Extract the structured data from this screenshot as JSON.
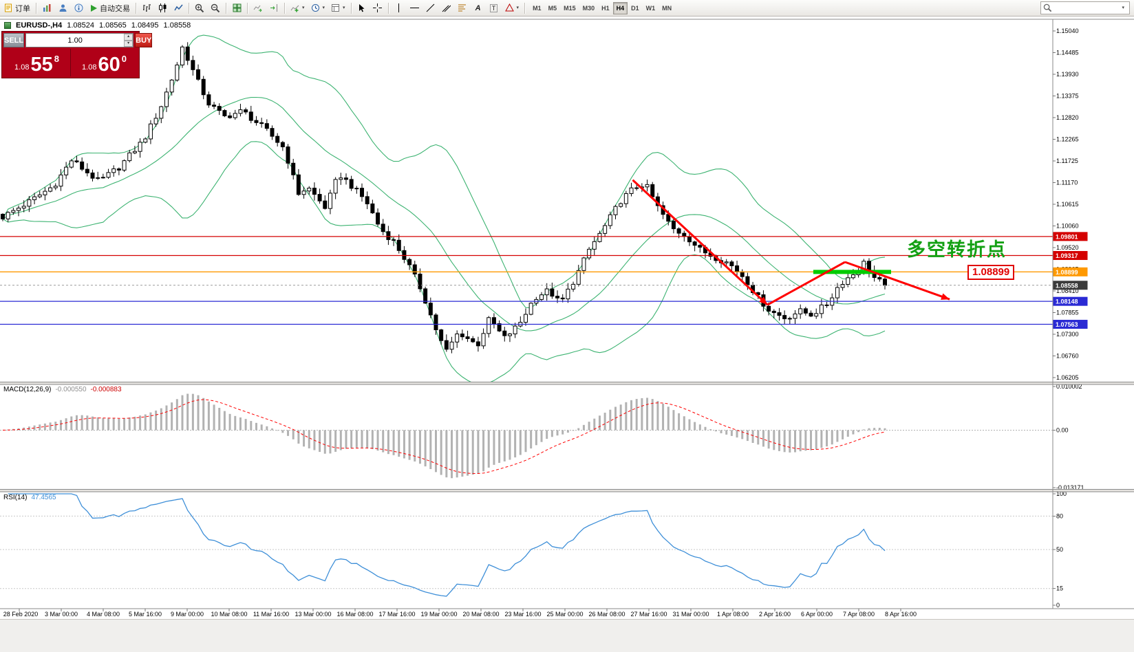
{
  "toolbar": {
    "order_label": "订单",
    "auto_trading_label": "自动交易",
    "text_a_label": "A",
    "text_t_label": "T",
    "timeframes": [
      "M1",
      "M5",
      "M15",
      "M30",
      "H1",
      "H4",
      "D1",
      "W1",
      "MN"
    ],
    "active_timeframe": "H4",
    "search_placeholder": "",
    "icons": [
      "new-order-icon",
      "market-watch-icon",
      "profile-icon",
      "data-window-icon",
      "autotrading-play-icon",
      "bar-chart-icon",
      "candlestick-chart-icon",
      "line-chart-icon",
      "zoom-in-icon",
      "zoom-out-icon",
      "tile-windows-icon",
      "auto-scroll-icon",
      "chart-shift-icon",
      "indicators-icon",
      "periodicity-icon",
      "templates-icon",
      "cursor-icon",
      "crosshair-icon",
      "horizontal-line-icon",
      "trendline-icon",
      "channel-icon",
      "fibonacci-icon",
      "arrows-icon",
      "search-icon",
      "dropdown-caret-icon"
    ]
  },
  "quote": {
    "symbol_period": "EURUSD-,H4",
    "open": "1.08524",
    "high": "1.08565",
    "low": "1.08495",
    "close": "1.08558"
  },
  "trade_panel": {
    "sell_label": "SELL",
    "buy_label": "BUY",
    "lot_value": "1.00",
    "sell_price_prefix": "1.08",
    "sell_price_big": "55",
    "sell_price_sup": "8",
    "buy_price_prefix": "1.08",
    "buy_price_big": "60",
    "buy_price_sup": "0"
  },
  "annotations": {
    "turning_point": "多空转折点",
    "level_flag": "1.08899"
  },
  "indicators": {
    "macd_name": "MACD(12,26,9)",
    "macd_value_main": "-0.000550",
    "macd_value_signal": "-0.000883",
    "macd_scale": [
      "0.010002",
      "0.00",
      "-0.013171"
    ],
    "rsi_name": "RSI(14)",
    "rsi_value": "47.4565",
    "rsi_scale": [
      "100",
      "80",
      "50",
      "15",
      "0"
    ]
  },
  "price_axis": {
    "labels": [
      "1.15040",
      "1.14485",
      "1.13930",
      "1.13375",
      "1.12820",
      "1.12265",
      "1.11725",
      "1.11170",
      "1.10615",
      "1.10060",
      "1.09520",
      "1.08965",
      "1.08410",
      "1.07855",
      "1.07300",
      "1.06760",
      "1.06205"
    ],
    "markers": [
      {
        "text": "1.09801",
        "price": 1.09801,
        "color": "#d40000"
      },
      {
        "text": "1.09317",
        "price": 1.09317,
        "color": "#d40000"
      },
      {
        "text": "1.08899",
        "price": 1.08899,
        "color": "#ff9900"
      },
      {
        "text": "1.08558",
        "price": 1.08558,
        "color": "#3b3b3b"
      },
      {
        "text": "1.08148",
        "price": 1.08148,
        "color": "#2a2ad4"
      },
      {
        "text": "1.07563",
        "price": 1.07563,
        "color": "#2a2ad4"
      }
    ]
  },
  "time_axis": [
    "28 Feb 2020",
    "3 Mar 00:00",
    "4 Mar 08:00",
    "5 Mar 16:00",
    "9 Mar 00:00",
    "10 Mar 08:00",
    "11 Mar 16:00",
    "13 Mar 00:00",
    "16 Mar 08:00",
    "17 Mar 16:00",
    "19 Mar 00:00",
    "20 Mar 08:00",
    "23 Mar 16:00",
    "25 Mar 00:00",
    "26 Mar 08:00",
    "27 Mar 16:00",
    "31 Mar 00:00",
    "1 Apr 08:00",
    "2 Apr 16:00",
    "6 Apr 00:00",
    "7 Apr 08:00",
    "8 Apr 16:00"
  ],
  "chart_data": {
    "type": "candlestick",
    "symbol": "EURUSD",
    "period": "H4",
    "y_range": [
      1.06205,
      1.1504
    ],
    "candles": 168,
    "anchors_x": [
      0.0,
      0.031,
      0.058,
      0.078,
      0.109,
      0.132,
      0.16,
      0.179,
      0.195,
      0.204,
      0.218,
      0.233,
      0.251,
      0.272,
      0.3,
      0.319,
      0.335,
      0.346,
      0.366,
      0.381,
      0.395,
      0.412,
      0.428,
      0.444,
      0.459,
      0.475,
      0.489,
      0.502,
      0.517,
      0.538,
      0.552,
      0.568,
      0.585,
      0.603,
      0.619,
      0.632,
      0.65,
      0.665,
      0.681,
      0.7,
      0.716,
      0.728,
      0.743,
      0.759,
      0.774,
      0.79,
      0.805,
      0.823,
      0.84,
      0.856,
      0.87,
      0.887,
      0.903,
      0.917,
      0.934,
      0.949,
      0.965,
      0.977,
      0.988,
      1.0
    ],
    "anchors_close": [
      1.103,
      1.107,
      1.111,
      1.1175,
      1.112,
      1.1157,
      1.1227,
      1.131,
      1.14,
      1.1465,
      1.139,
      1.132,
      1.1285,
      1.13,
      1.1248,
      1.1205,
      1.109,
      1.1105,
      1.1053,
      1.114,
      1.111,
      1.107,
      1.1,
      1.0965,
      1.0912,
      1.0842,
      1.0755,
      1.0685,
      1.0737,
      1.0702,
      1.0772,
      1.072,
      1.0755,
      1.0825,
      1.0843,
      1.0808,
      1.0878,
      1.0948,
      1.1,
      1.107,
      1.1105,
      1.1115,
      1.1053,
      1.1,
      1.0983,
      1.0947,
      1.093,
      1.0912,
      1.0877,
      1.0825,
      1.079,
      1.0772,
      1.079,
      1.0781,
      1.0807,
      1.086,
      1.0886,
      1.0915,
      1.0875,
      1.08558
    ],
    "current_price": 1.08558,
    "bollinger": {
      "period": 20,
      "deviation": 2,
      "color": "#3cb371"
    },
    "hlines": [
      {
        "price": 1.09801,
        "color": "#d40000"
      },
      {
        "price": 1.09317,
        "color": "#d40000"
      },
      {
        "price": 1.08899,
        "color": "#ff9900"
      },
      {
        "price": 1.08148,
        "color": "#2a2ad4"
      },
      {
        "price": 1.07563,
        "color": "#2a2ad4"
      }
    ],
    "trend_color": "#ff0000",
    "trend_lines": [
      {
        "x1": 0.601,
        "p1": 1.1124,
        "x2": 0.729,
        "p2": 1.0806,
        "arrow": true
      },
      {
        "x1": 0.729,
        "p1": 1.0806,
        "x2": 0.8026,
        "p2": 1.0915,
        "arrow": false
      },
      {
        "x1": 0.8026,
        "p1": 1.0915,
        "x2": 0.902,
        "p2": 1.082,
        "arrow": true
      }
    ],
    "support_segment": {
      "x1": 0.7725,
      "x2": 0.8464,
      "price": 1.08899,
      "color": "#00cc00"
    },
    "macd": {
      "params": [
        12,
        26,
        9
      ],
      "range": [
        -0.013171,
        0.010002
      ],
      "histogram_color": "#b2b2b2",
      "signal_color": "#ff0000"
    },
    "rsi": {
      "period": 14,
      "range": [
        0,
        100
      ],
      "levels": [
        80,
        50,
        15
      ],
      "color": "#3e8fd8",
      "last": 47.4565
    }
  }
}
